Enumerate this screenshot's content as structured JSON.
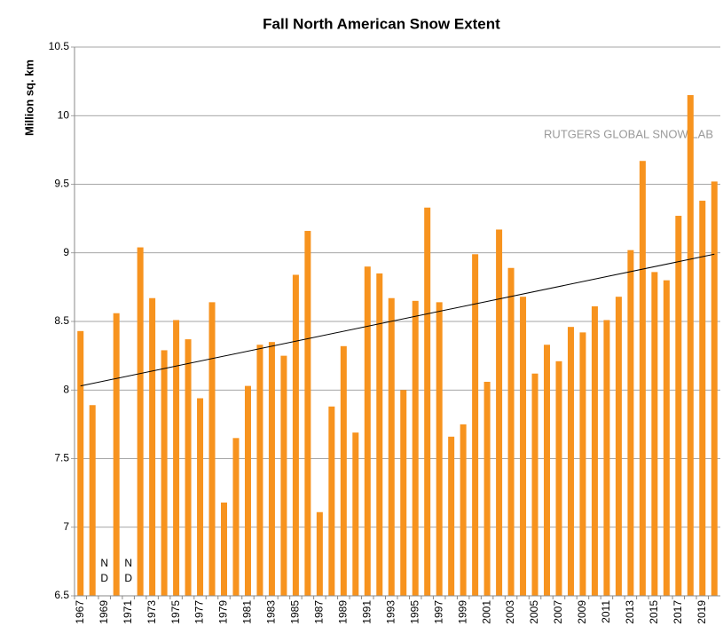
{
  "chart_data": {
    "type": "bar",
    "title": "Fall North American Snow Extent",
    "y_label": "Million sq. km",
    "annotation": "RUTGERS GLOBAL SNOW LAB",
    "categories": [
      "1967",
      null,
      "1969",
      null,
      "1971",
      null,
      "1973",
      null,
      "1975",
      null,
      "1977",
      null,
      "1979",
      null,
      "1981",
      null,
      "1983",
      null,
      "1985",
      null,
      "1987",
      null,
      "1989",
      null,
      "1991",
      null,
      "1993",
      null,
      "1995",
      null,
      "1997",
      null,
      "1999",
      null,
      "2001",
      null,
      "2003",
      null,
      "2005",
      null,
      "2007",
      null,
      "2009",
      null,
      "2011",
      null,
      "2013",
      null,
      "2015",
      null,
      "2017",
      null,
      "2019",
      null
    ],
    "values": [
      8.43,
      7.89,
      null,
      8.56,
      null,
      9.04,
      8.67,
      8.29,
      8.51,
      8.37,
      7.94,
      8.64,
      7.18,
      7.65,
      8.03,
      8.33,
      8.35,
      8.25,
      8.84,
      9.16,
      7.11,
      7.88,
      8.32,
      7.69,
      8.9,
      8.85,
      8.67,
      8.0,
      8.65,
      9.33,
      8.64,
      7.66,
      7.75,
      8.99,
      8.06,
      9.17,
      8.89,
      8.68,
      8.12,
      8.33,
      8.21,
      8.46,
      8.42,
      8.61,
      8.51,
      8.68,
      9.02,
      9.67,
      8.86,
      8.8,
      9.27,
      10.15,
      9.38,
      9.52
    ],
    "color": "#f7931e",
    "no_data": [
      {
        "category": "1969",
        "label": [
          "N",
          "D"
        ]
      },
      {
        "category": "1971",
        "label": [
          "N",
          "D"
        ]
      }
    ],
    "trend": [
      8.03,
      8.99
    ],
    "trend_color": "#000000",
    "ylim": [
      6.5,
      10.5
    ],
    "yticks": [
      6.5,
      7,
      7.5,
      8,
      8.5,
      9,
      9.5,
      10,
      10.5
    ],
    "grid": true
  }
}
